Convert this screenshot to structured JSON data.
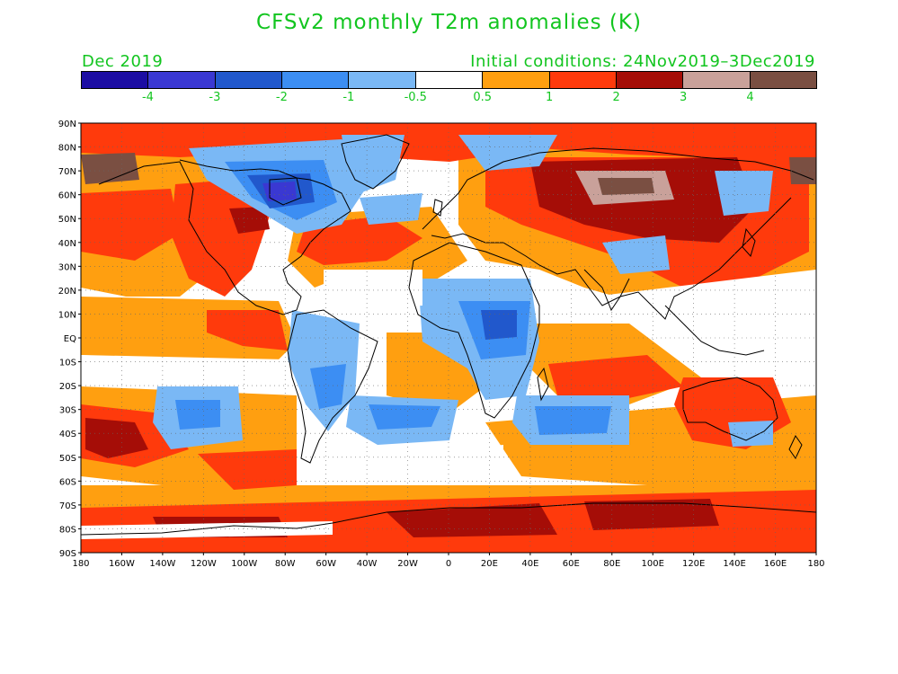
{
  "title": "CFSv2 monthly T2m anomalies (K)",
  "subtitle_left": "Dec 2019",
  "subtitle_right": "Initial conditions: 24Nov2019–3Dec2019",
  "colorbar": {
    "colors": [
      "#1c0da3",
      "#3a38d2",
      "#2158cc",
      "#3c8ef3",
      "#7ab8f5",
      "#ffffff",
      "#ff9f10",
      "#ff3a0c",
      "#a50d07",
      "#c9a19a",
      "#7a4f42"
    ],
    "labels": [
      "-4",
      "-3",
      "-2",
      "-1",
      "-0.5",
      "0.5",
      "1",
      "2",
      "3",
      "4"
    ]
  },
  "map": {
    "lat_labels": [
      "90N",
      "80N",
      "70N",
      "60N",
      "50N",
      "40N",
      "30N",
      "20N",
      "10N",
      "EQ",
      "10S",
      "20S",
      "30S",
      "40S",
      "50S",
      "60S",
      "70S",
      "80S",
      "90S"
    ],
    "lon_labels": [
      "180",
      "160W",
      "140W",
      "120W",
      "100W",
      "80W",
      "60W",
      "40W",
      "20W",
      "0",
      "20E",
      "40E",
      "60E",
      "80E",
      "100E",
      "120E",
      "140E",
      "160E",
      "180"
    ],
    "projection": "equirectangular",
    "grid": "dotted",
    "anomaly_regions": [
      {
        "region": "Arctic Ocean",
        "level": "2"
      },
      {
        "region": "Eastern Canada / Hudson Bay",
        "level": "-4"
      },
      {
        "region": "Greenland",
        "level": "-1"
      },
      {
        "region": "Western North America",
        "level": "2"
      },
      {
        "region": "North Atlantic",
        "level": "2"
      },
      {
        "region": "Central Siberia",
        "level": "4"
      },
      {
        "region": "Northern Asia",
        "level": "3"
      },
      {
        "region": "Tibetan Plateau",
        "level": "-1"
      },
      {
        "region": "Central Africa",
        "level": "-2"
      },
      {
        "region": "South America interior",
        "level": "-1"
      },
      {
        "region": "Central Australia",
        "level": "2"
      },
      {
        "region": "South Pacific",
        "level": "-1"
      },
      {
        "region": "South Atlantic",
        "level": "-1"
      },
      {
        "region": "South Indian Ocean",
        "level": "-1"
      },
      {
        "region": "Southern Ocean",
        "level": "2"
      },
      {
        "region": "Antarctica",
        "level": "3"
      }
    ]
  }
}
